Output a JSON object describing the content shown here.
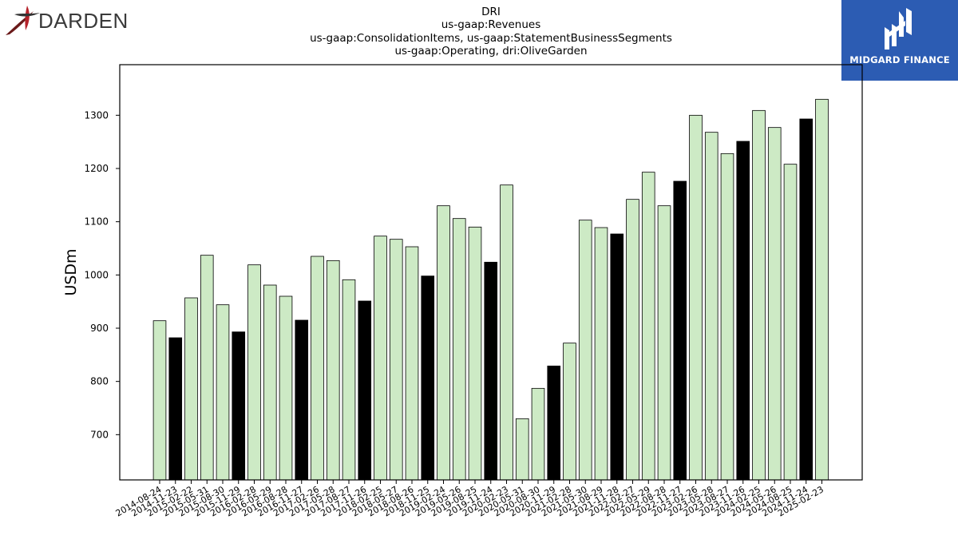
{
  "header": {
    "title_lines": [
      "DRI",
      "us-gaap:Revenues",
      "us-gaap:ConsolidationItems, us-gaap:StatementBusinessSegments",
      "us-gaap:Operating, dri:OliveGarden"
    ]
  },
  "logos": {
    "left_brand": "DARDEN",
    "right_brand": "MIDGARD FINANCE"
  },
  "colors": {
    "bar_light": "#cdeac5",
    "bar_dark": "#000000",
    "edge": "#000000",
    "midgard_bg": "#2c5cb3",
    "darden_red": "#b5222a"
  },
  "chart_data": {
    "type": "bar",
    "ylabel": "USDm",
    "xlabel": "",
    "ylim": [
      615,
      1395
    ],
    "yticks": [
      700,
      800,
      900,
      1000,
      1100,
      1200,
      1300
    ],
    "grid": false,
    "categories": [
      "2014-08-24",
      "2014-11-23",
      "2015-02-22",
      "2015-05-31",
      "2015-08-30",
      "2015-11-29",
      "2016-02-28",
      "2016-05-29",
      "2016-08-28",
      "2016-11-27",
      "2017-02-26",
      "2017-05-28",
      "2017-08-27",
      "2017-11-26",
      "2018-02-25",
      "2018-05-27",
      "2018-08-26",
      "2018-11-25",
      "2019-02-24",
      "2019-05-26",
      "2019-08-25",
      "2019-11-24",
      "2020-02-23",
      "2020-05-31",
      "2020-08-30",
      "2020-11-29",
      "2021-02-28",
      "2021-05-30",
      "2021-08-29",
      "2021-11-28",
      "2022-02-27",
      "2022-05-29",
      "2022-08-28",
      "2022-11-27",
      "2023-02-26",
      "2023-05-28",
      "2023-08-27",
      "2023-11-26",
      "2024-02-25",
      "2024-05-26",
      "2024-08-25",
      "2024-11-24",
      "2025-02-23"
    ],
    "values": [
      914,
      882,
      957,
      1037,
      944,
      893,
      1019,
      981,
      960,
      915,
      1035,
      1027,
      991,
      951,
      1073,
      1067,
      1053,
      998,
      1130,
      1106,
      1090,
      1024,
      1169,
      730,
      787,
      829,
      872,
      1103,
      1089,
      1077,
      1142,
      1193,
      1130,
      1176,
      1300,
      1268,
      1228,
      1251,
      1309,
      1277,
      1208,
      1293,
      1330
    ],
    "highlight": [
      false,
      true,
      false,
      false,
      false,
      true,
      false,
      false,
      false,
      true,
      false,
      false,
      false,
      true,
      false,
      false,
      false,
      true,
      false,
      false,
      false,
      true,
      false,
      false,
      false,
      true,
      false,
      false,
      false,
      true,
      false,
      false,
      false,
      true,
      false,
      false,
      false,
      true,
      false,
      false,
      false,
      true,
      false
    ]
  }
}
